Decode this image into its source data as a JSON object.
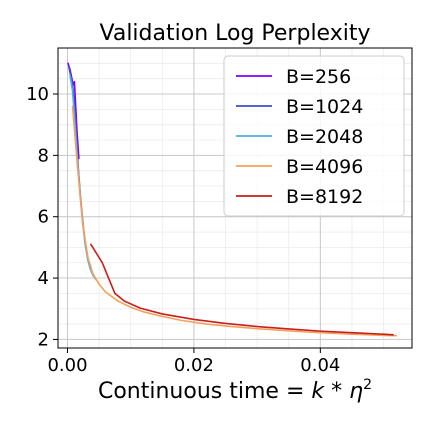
{
  "chart_data": {
    "type": "line",
    "title": "Validation Log Perplexity",
    "xlabel_text": "Continuous time ",
    "xlabel_math_eq": "= ",
    "xlabel_math_k": "k",
    "xlabel_math_star": " * ",
    "xlabel_math_eta": "η",
    "xlabel_math_exp": "2",
    "ylabel": "",
    "xlim": [
      -0.0015,
      0.0545
    ],
    "ylim": [
      1.72,
      11.5
    ],
    "xticks": [
      0.0,
      0.02,
      0.04
    ],
    "xtick_labels": [
      "0.00",
      "0.02",
      "0.04"
    ],
    "yticks": [
      2,
      4,
      6,
      8,
      10
    ],
    "ytick_labels": [
      "2",
      "4",
      "6",
      "8",
      "10"
    ],
    "x_minor_step": 0.005,
    "y_minor_step": 0.5,
    "grid": true,
    "legend_position": "top-right",
    "series": [
      {
        "name": "B=256",
        "color": "#7f00ff",
        "x": [
          0.0001,
          0.0004,
          0.0007,
          0.0009,
          0.0011,
          0.0013,
          0.0015,
          0.0018
        ],
        "y": [
          11.0,
          10.8,
          10.5,
          10.3,
          10.4,
          9.6,
          8.8,
          7.9
        ]
      },
      {
        "name": "B=1024",
        "color": "#3d4fd0",
        "x": [
          0.0002,
          0.0005,
          0.0008,
          0.0011,
          0.0014,
          0.0017,
          0.002,
          0.0023,
          0.0026,
          0.0029,
          0.0032
        ],
        "y": [
          10.9,
          10.6,
          10.3,
          9.7,
          8.7,
          7.6,
          6.8,
          6.1,
          5.5,
          5.0,
          4.7
        ]
      },
      {
        "name": "B=2048",
        "color": "#4fb0e0",
        "x": [
          0.0004,
          0.0008,
          0.0012,
          0.0016,
          0.002,
          0.0024,
          0.0028,
          0.0032,
          0.0036,
          0.004,
          0.0045
        ],
        "y": [
          10.6,
          10.1,
          9.0,
          7.8,
          6.7,
          5.8,
          5.1,
          4.6,
          4.3,
          4.1,
          3.95
        ]
      },
      {
        "name": "B=4096",
        "color": "#f4a05a",
        "x": [
          0.0008,
          0.0016,
          0.0024,
          0.0032,
          0.004,
          0.005,
          0.006,
          0.008,
          0.01,
          0.012,
          0.015,
          0.018,
          0.022,
          0.026,
          0.03,
          0.035,
          0.04,
          0.045,
          0.05,
          0.052
        ],
        "y": [
          9.6,
          7.6,
          5.8,
          4.7,
          4.15,
          3.8,
          3.55,
          3.25,
          3.05,
          2.9,
          2.75,
          2.62,
          2.5,
          2.42,
          2.35,
          2.28,
          2.22,
          2.17,
          2.13,
          2.12
        ]
      },
      {
        "name": "B=8192",
        "color": "#c81e1e",
        "x": [
          0.0037,
          0.0055,
          0.0075,
          0.009,
          0.0115,
          0.015,
          0.02,
          0.025,
          0.03,
          0.035,
          0.04,
          0.045,
          0.05,
          0.0515
        ],
        "y": [
          5.1,
          4.5,
          3.5,
          3.25,
          3.02,
          2.83,
          2.65,
          2.52,
          2.42,
          2.34,
          2.27,
          2.22,
          2.17,
          2.15
        ]
      }
    ]
  }
}
